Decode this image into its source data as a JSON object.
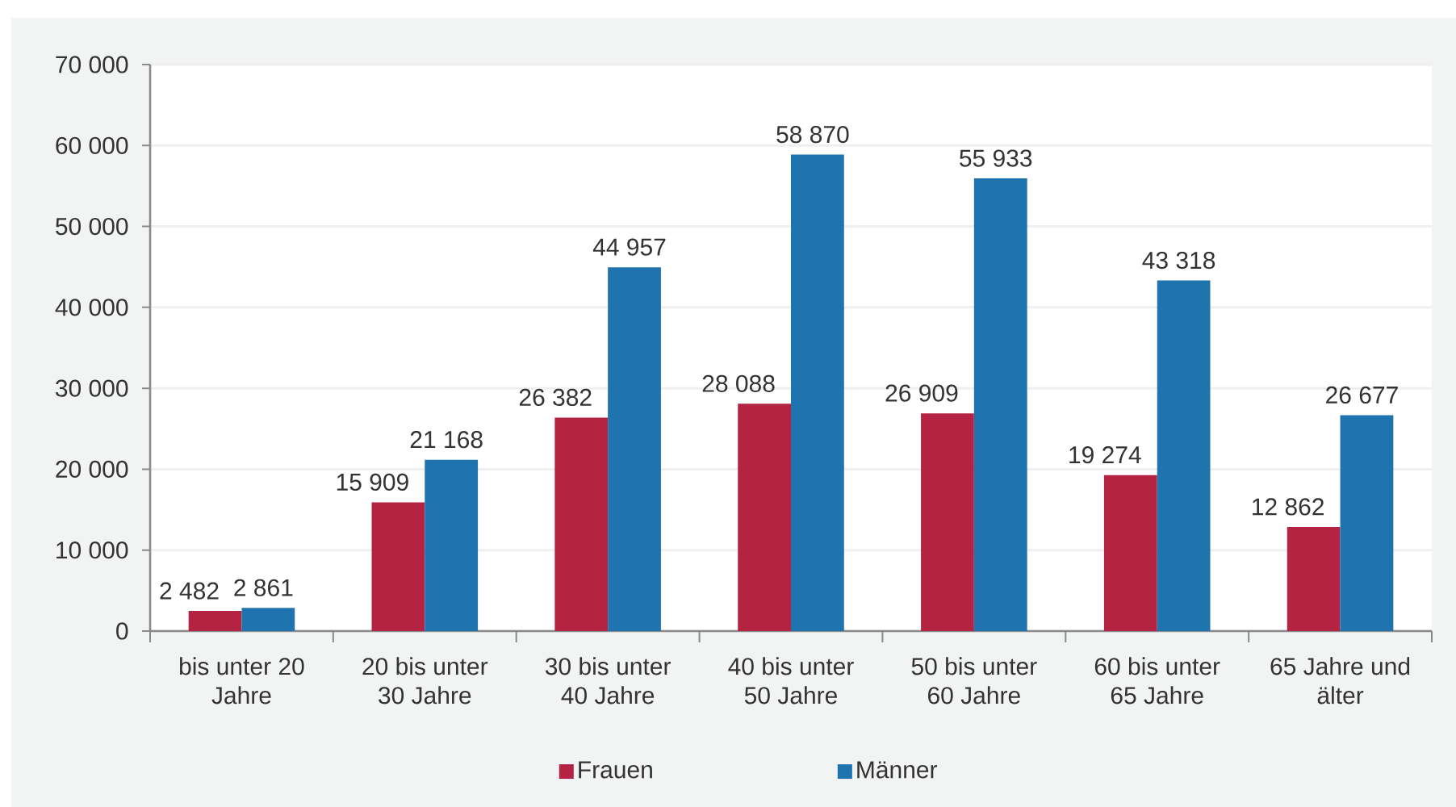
{
  "chart_data": {
    "type": "bar",
    "categories": [
      "bis unter 20 Jahre",
      "20 bis unter 30 Jahre",
      "30 bis unter 40 Jahre",
      "40 bis unter 50 Jahre",
      "50 bis unter 60 Jahre",
      "60 bis unter 65 Jahre",
      "65 Jahre und älter"
    ],
    "series": [
      {
        "name": "Frauen",
        "color": "#b42342",
        "values": [
          2482,
          15909,
          26382,
          28088,
          26909,
          19274,
          12862
        ],
        "value_labels": [
          "2 482",
          "15 909",
          "26 382",
          "28 088",
          "26 909",
          "19 274",
          "12 862"
        ]
      },
      {
        "name": "Männer",
        "color": "#1f74b0",
        "values": [
          2861,
          21168,
          44957,
          58870,
          55933,
          43318,
          26677
        ],
        "value_labels": [
          "2 861",
          "21 168",
          "44 957",
          "58 870",
          "55 933",
          "43 318",
          "26 677"
        ]
      }
    ],
    "ylim": [
      0,
      70000
    ],
    "yticks": [
      0,
      {
        "value": 10000,
        "label": "10 000"
      },
      {
        "value": 20000,
        "label": "20 000"
      },
      {
        "value": 30000,
        "label": "30 000"
      },
      {
        "value": 40000,
        "label": "40 000"
      },
      {
        "value": 50000,
        "label": "50 000"
      },
      {
        "value": 60000,
        "label": "60 000"
      },
      {
        "value": 70000,
        "label": "70 000"
      }
    ],
    "grid": "y",
    "legend": "bottom"
  }
}
